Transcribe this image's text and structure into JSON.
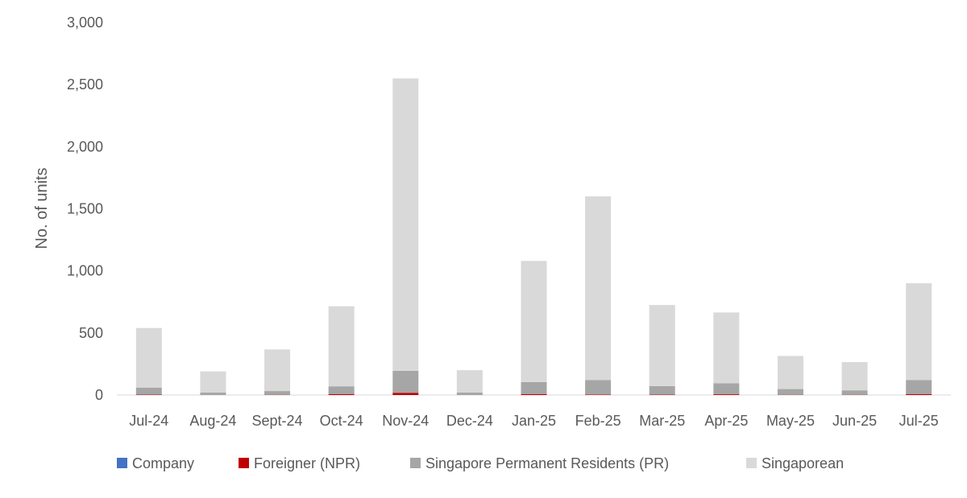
{
  "chart_data": {
    "type": "bar",
    "stacked": true,
    "title": "",
    "xlabel": "",
    "ylabel": "No. of units",
    "ylim": [
      0,
      3000
    ],
    "yticks": [
      "0",
      "500",
      "1,000",
      "1,500",
      "2,000",
      "2,500",
      "3,000"
    ],
    "ytick_values": [
      0,
      500,
      1000,
      1500,
      2000,
      2500,
      3000
    ],
    "grid": false,
    "legend_position": "bottom",
    "categories": [
      "Jul-24",
      "Aug-24",
      "Sept-24",
      "Oct-24",
      "Nov-24",
      "Dec-24",
      "Jan-25",
      "Feb-25",
      "Mar-25",
      "Apr-25",
      "May-25",
      "Jun-25",
      "Jul-25"
    ],
    "series": [
      {
        "name": "Company",
        "color": "#4472c4",
        "values": [
          0,
          0,
          0,
          0,
          0,
          0,
          0,
          0,
          0,
          0,
          0,
          0,
          0
        ]
      },
      {
        "name": "Foreigner (NPR)",
        "color": "#c00000",
        "values": [
          3,
          1,
          2,
          8,
          18,
          1,
          8,
          4,
          3,
          6,
          2,
          2,
          8
        ]
      },
      {
        "name": "Singapore Permanent Residents (PR)",
        "color": "#a6a6a6",
        "values": [
          57,
          19,
          30,
          62,
          177,
          19,
          97,
          116,
          69,
          89,
          46,
          36,
          112
        ]
      },
      {
        "name": "Singaporean",
        "color": "#d9d9d9",
        "values": [
          480,
          170,
          335,
          645,
          2355,
          180,
          975,
          1480,
          653,
          570,
          267,
          227,
          780
        ]
      }
    ]
  }
}
